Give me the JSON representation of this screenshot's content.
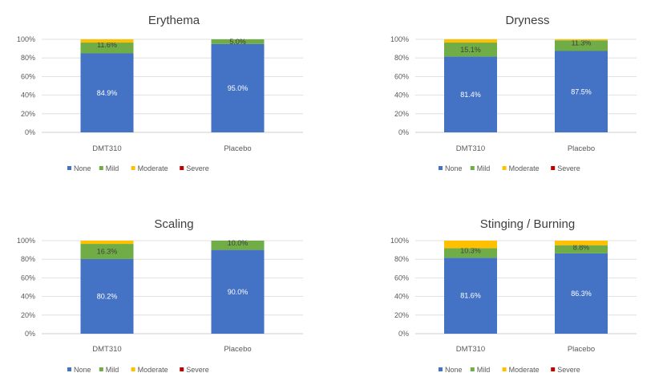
{
  "chart_data": [
    {
      "type": "bar",
      "stacked": true,
      "title": "Erythema",
      "categories": [
        "DMT310",
        "Placebo"
      ],
      "ylim": [
        0,
        100
      ],
      "y_ticks": [
        "0%",
        "20%",
        "40%",
        "60%",
        "80%",
        "100%"
      ],
      "series": [
        {
          "name": "None",
          "values": [
            84.9,
            95.0
          ],
          "labels": [
            "84.9%",
            "95.0%"
          ]
        },
        {
          "name": "Mild",
          "values": [
            11.6,
            5.0
          ],
          "labels": [
            "11.6%",
            "5.0%"
          ]
        },
        {
          "name": "Moderate",
          "values": [
            3.5,
            0.0
          ],
          "labels": [
            "",
            ""
          ]
        },
        {
          "name": "Severe",
          "values": [
            0.0,
            0.0
          ],
          "labels": [
            "",
            ""
          ]
        }
      ],
      "legend_position": "bottom",
      "grid": true
    },
    {
      "type": "bar",
      "stacked": true,
      "title": "Dryness",
      "categories": [
        "DMT310",
        "Placebo"
      ],
      "ylim": [
        0,
        100
      ],
      "y_ticks": [
        "0%",
        "20%",
        "40%",
        "60%",
        "80%",
        "100%"
      ],
      "series": [
        {
          "name": "None",
          "values": [
            81.4,
            87.5
          ],
          "labels": [
            "81.4%",
            "87.5%"
          ]
        },
        {
          "name": "Mild",
          "values": [
            15.1,
            11.3
          ],
          "labels": [
            "15.1%",
            "11.3%"
          ]
        },
        {
          "name": "Moderate",
          "values": [
            3.5,
            1.2
          ],
          "labels": [
            "",
            ""
          ]
        },
        {
          "name": "Severe",
          "values": [
            0.0,
            0.0
          ],
          "labels": [
            "",
            ""
          ]
        }
      ],
      "legend_position": "bottom",
      "grid": true
    },
    {
      "type": "bar",
      "stacked": true,
      "title": "Scaling",
      "categories": [
        "DMT310",
        "Placebo"
      ],
      "ylim": [
        0,
        100
      ],
      "y_ticks": [
        "0%",
        "20%",
        "40%",
        "60%",
        "80%",
        "100%"
      ],
      "series": [
        {
          "name": "None",
          "values": [
            80.2,
            90.0
          ],
          "labels": [
            "80.2%",
            "90.0%"
          ]
        },
        {
          "name": "Mild",
          "values": [
            16.3,
            10.0
          ],
          "labels": [
            "16.3%",
            "10.0%"
          ]
        },
        {
          "name": "Moderate",
          "values": [
            3.5,
            0.0
          ],
          "labels": [
            "",
            ""
          ]
        },
        {
          "name": "Severe",
          "values": [
            0.0,
            0.0
          ],
          "labels": [
            "",
            ""
          ]
        }
      ],
      "legend_position": "bottom",
      "grid": true
    },
    {
      "type": "bar",
      "stacked": true,
      "title": "Stinging / Burning",
      "categories": [
        "DMT310",
        "Placebo"
      ],
      "ylim": [
        0,
        100
      ],
      "y_ticks": [
        "0%",
        "20%",
        "40%",
        "60%",
        "80%",
        "100%"
      ],
      "series": [
        {
          "name": "None",
          "values": [
            81.6,
            86.3
          ],
          "labels": [
            "81.6%",
            "86.3%"
          ]
        },
        {
          "name": "Mild",
          "values": [
            10.3,
            8.8
          ],
          "labels": [
            "10.3%",
            "8.8%"
          ]
        },
        {
          "name": "Moderate",
          "values": [
            8.1,
            4.9
          ],
          "labels": [
            "",
            ""
          ]
        },
        {
          "name": "Severe",
          "values": [
            0.0,
            0.0
          ],
          "labels": [
            "",
            ""
          ]
        }
      ],
      "legend_position": "bottom",
      "grid": true
    }
  ],
  "colors": {
    "None": "#4472c4",
    "Mild": "#70ad47",
    "Moderate": "#ffc000",
    "Severe": "#c00000"
  }
}
